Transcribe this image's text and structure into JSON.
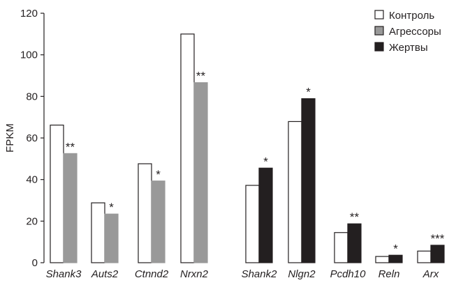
{
  "chart_data": {
    "type": "bar",
    "ylabel": "FPKM",
    "ylim": [
      0,
      120
    ],
    "yticks": [
      0,
      20,
      40,
      60,
      80,
      100,
      120
    ],
    "legend_position": "top-right",
    "series": [
      {
        "name": "Контроль",
        "color": "#ffffff",
        "stroke": "#231f20"
      },
      {
        "name": "Агрессоры",
        "color": "#999999",
        "stroke": "#999999"
      },
      {
        "name": "Жертвы",
        "color": "#231f20",
        "stroke": "#231f20"
      }
    ],
    "groups": [
      {
        "compare_series": "Агрессоры",
        "categories": [
          {
            "name": "Shank3",
            "control": 66.2,
            "compare": 52.5,
            "sig": "**"
          },
          {
            "name": "Auts2",
            "control": 28.8,
            "compare": 23.4,
            "sig": "*"
          },
          {
            "name": "Ctnnd2",
            "control": 47.6,
            "compare": 39.3,
            "sig": "*"
          },
          {
            "name": "Nrxn2",
            "control": 110.0,
            "compare": 86.6,
            "sig": "**"
          }
        ]
      },
      {
        "compare_series": "Жертвы",
        "categories": [
          {
            "name": "Shank2",
            "control": 37.2,
            "compare": 45.5,
            "sig": "*"
          },
          {
            "name": "Nlgn2",
            "control": 67.9,
            "compare": 78.9,
            "sig": "*"
          },
          {
            "name": "Pcdh10",
            "control": 14.5,
            "compare": 18.7,
            "sig": "**"
          },
          {
            "name": "Reln",
            "control": 3.0,
            "compare": 3.6,
            "sig": "*"
          },
          {
            "name": "Arx",
            "control": 5.6,
            "compare": 8.4,
            "sig": "***"
          }
        ]
      }
    ]
  }
}
